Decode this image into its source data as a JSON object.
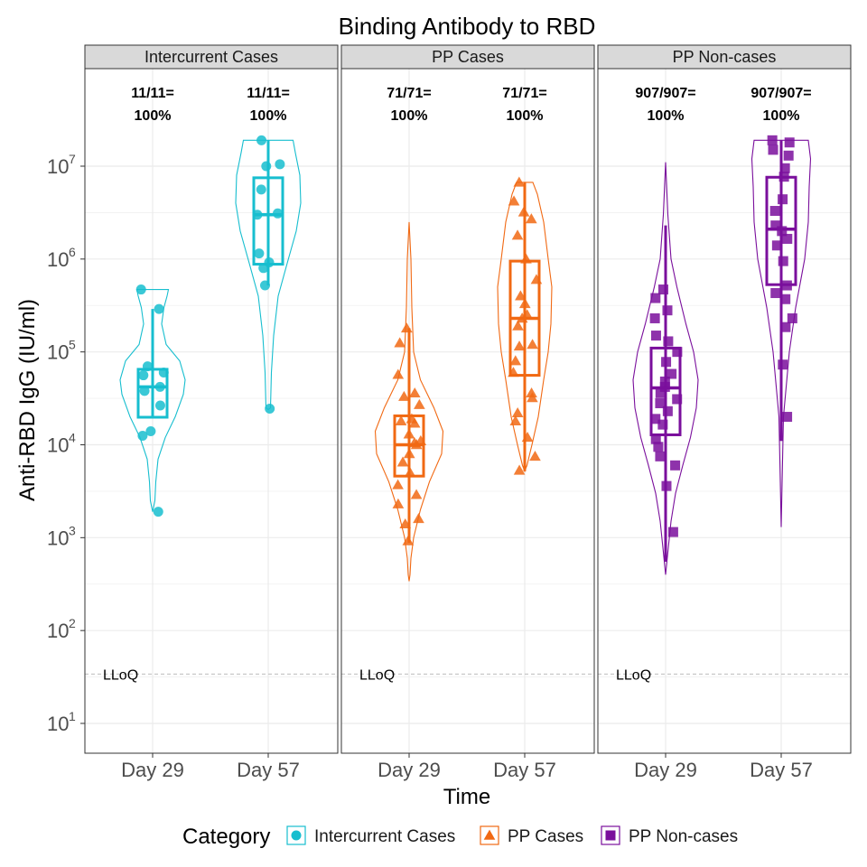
{
  "chart_data": {
    "type": "violin-box-jitter",
    "title": "Binding Antibody to RBD",
    "xlabel": "Time",
    "ylabel": "Anti-RBD IgG (IU/ml)",
    "y_scale": "log10",
    "ylim": [
      4.5,
      90000000
    ],
    "y_ticks": [
      {
        "value": 10,
        "base": "10",
        "exp": "1"
      },
      {
        "value": 100,
        "base": "10",
        "exp": "2"
      },
      {
        "value": 1000,
        "base": "10",
        "exp": "3"
      },
      {
        "value": 10000,
        "base": "10",
        "exp": "4"
      },
      {
        "value": 100000,
        "base": "10",
        "exp": "5"
      },
      {
        "value": 1000000,
        "base": "10",
        "exp": "6"
      },
      {
        "value": 10000000,
        "base": "10",
        "exp": "7"
      }
    ],
    "categories": [
      "Day 29",
      "Day 57"
    ],
    "lloq": {
      "label": "LLoQ",
      "value": 34
    },
    "grid": true,
    "legend": {
      "title": "Category",
      "position": "bottom",
      "items": [
        {
          "label": "Intercurrent Cases",
          "color": "#17becf",
          "shape": "circle"
        },
        {
          "label": "PP Cases",
          "color": "#f16913",
          "shape": "triangle"
        },
        {
          "label": "PP Non-cases",
          "color": "#7a0f9c",
          "shape": "square"
        }
      ]
    },
    "panels": [
      {
        "strip": "Intercurrent Cases",
        "color": "#17becf",
        "shape": "circle",
        "groups": [
          {
            "category": "Day 29",
            "response_line1": "11/11=",
            "response_line2": "100%",
            "box": {
              "q1": 19800,
              "median": 42000,
              "q3": 65000,
              "whisker_low": 19800,
              "whisker_high": 290000
            },
            "violin": [
              [
                1900,
                0.0
              ],
              [
                2500,
                0.05
              ],
              [
                4000,
                0.07
              ],
              [
                7000,
                0.12
              ],
              [
                12000,
                0.28
              ],
              [
                20000,
                0.5
              ],
              [
                35000,
                0.68
              ],
              [
                50000,
                0.72
              ],
              [
                80000,
                0.6
              ],
              [
                120000,
                0.3
              ],
              [
                200000,
                0.2
              ],
              [
                300000,
                0.25
              ],
              [
                400000,
                0.32
              ],
              [
                470000,
                0.35
              ]
            ],
            "points": [
              1900,
              12500,
              14000,
              26500,
              38000,
              42000,
              56000,
              60000,
              70000,
              290000,
              470000
            ]
          },
          {
            "category": "Day 57",
            "response_line1": "11/11=",
            "response_line2": "100%",
            "box": {
              "q1": 880000,
              "median": 3000000,
              "q3": 7500000,
              "whisker_low": 520000,
              "whisker_high": 19000000
            },
            "violin": [
              [
                24000,
                0.0
              ],
              [
                25000,
                0.05
              ],
              [
                60000,
                0.07
              ],
              [
                150000,
                0.12
              ],
              [
                400000,
                0.22
              ],
              [
                900000,
                0.42
              ],
              [
                2000000,
                0.62
              ],
              [
                4000000,
                0.72
              ],
              [
                8000000,
                0.7
              ],
              [
                14000000,
                0.6
              ],
              [
                19000000,
                0.55
              ]
            ],
            "points": [
              24500,
              520000,
              800000,
              920000,
              1150000,
              3000000,
              3100000,
              5600000,
              10000000,
              10500000,
              19000000
            ]
          }
        ]
      },
      {
        "strip": "PP Cases",
        "color": "#f16913",
        "shape": "triangle",
        "groups": [
          {
            "category": "Day 29",
            "response_line1": "71/71=",
            "response_line2": "100%",
            "box": {
              "q1": 4600,
              "median": 10000,
              "q3": 20500,
              "whisker_low": 880,
              "whisker_high": 180000
            },
            "violin": [
              [
                340,
                0.0
              ],
              [
                400,
                0.02
              ],
              [
                600,
                0.04
              ],
              [
                1000,
                0.1
              ],
              [
                2000,
                0.25
              ],
              [
                4000,
                0.45
              ],
              [
                8000,
                0.72
              ],
              [
                14000,
                0.75
              ],
              [
                25000,
                0.55
              ],
              [
                50000,
                0.25
              ],
              [
                100000,
                0.1
              ],
              [
                300000,
                0.06
              ],
              [
                1000000,
                0.04
              ],
              [
                2500000,
                0.0
              ]
            ],
            "points": [
              920,
              1400,
              1600,
              2300,
              2900,
              3700,
              5000,
              6500,
              8000,
              10000,
              10500,
              11000,
              13000,
              17000,
              18000,
              19000,
              27000,
              33000,
              36000,
              57000,
              125000,
              180000
            ]
          },
          {
            "category": "Day 57",
            "response_line1": "71/71=",
            "response_line2": "100%",
            "box": {
              "q1": 56000,
              "median": 230000,
              "q3": 950000,
              "whisker_low": 5200,
              "whisker_high": 6700000
            },
            "violin": [
              [
                5200,
                0.0
              ],
              [
                6000,
                0.05
              ],
              [
                10000,
                0.16
              ],
              [
                20000,
                0.3
              ],
              [
                50000,
                0.42
              ],
              [
                100000,
                0.52
              ],
              [
                200000,
                0.58
              ],
              [
                500000,
                0.6
              ],
              [
                1000000,
                0.52
              ],
              [
                2500000,
                0.42
              ],
              [
                5000000,
                0.28
              ],
              [
                6700000,
                0.18
              ]
            ],
            "points": [
              5300,
              7500,
              12000,
              18000,
              22000,
              32000,
              36000,
              60000,
              80000,
              115000,
              120000,
              190000,
              230000,
              250000,
              330000,
              400000,
              600000,
              1000000,
              1800000,
              2700000,
              3200000,
              4200000,
              6700000
            ]
          }
        ]
      },
      {
        "strip": "PP Non-cases",
        "color": "#7a0f9c",
        "shape": "square",
        "groups": [
          {
            "category": "Day 29",
            "response_line1": "907/907=",
            "response_line2": "100%",
            "box": {
              "q1": 12800,
              "median": 41000,
              "q3": 110000,
              "whisker_low": 550,
              "whisker_high": 2300000
            },
            "violin": [
              [
                400,
                0.0
              ],
              [
                700,
                0.05
              ],
              [
                1500,
                0.12
              ],
              [
                3000,
                0.22
              ],
              [
                6000,
                0.38
              ],
              [
                12000,
                0.55
              ],
              [
                25000,
                0.68
              ],
              [
                50000,
                0.72
              ],
              [
                100000,
                0.62
              ],
              [
                200000,
                0.45
              ],
              [
                500000,
                0.25
              ],
              [
                1000000,
                0.12
              ],
              [
                3000000,
                0.05
              ],
              [
                11000000,
                0.0
              ]
            ],
            "points": [
              1150,
              3600,
              6000,
              7500,
              9500,
              11500,
              16500,
              19000,
              23000,
              28000,
              31000,
              36000,
              42000,
              48000,
              58000,
              78000,
              100000,
              130000,
              150000,
              230000,
              280000,
              380000,
              470000
            ]
          },
          {
            "category": "Day 57",
            "response_line1": "907/907=",
            "response_line2": "100%",
            "box": {
              "q1": 530000,
              "median": 2100000,
              "q3": 7600000,
              "whisker_low": 11000,
              "whisker_high": 19000000
            },
            "violin": [
              [
                1300,
                0.0
              ],
              [
                4000,
                0.02
              ],
              [
                20000,
                0.05
              ],
              [
                100000,
                0.18
              ],
              [
                300000,
                0.32
              ],
              [
                1000000,
                0.52
              ],
              [
                2500000,
                0.6
              ],
              [
                6000000,
                0.62
              ],
              [
                12000000,
                0.65
              ],
              [
                19000000,
                0.6
              ]
            ],
            "points": [
              20000,
              73000,
              185000,
              230000,
              370000,
              430000,
              520000,
              950000,
              1400000,
              1650000,
              2000000,
              2300000,
              3300000,
              4400000,
              7700000,
              9500000,
              13000000,
              15000000,
              18000000,
              19000000
            ]
          }
        ]
      }
    ]
  }
}
